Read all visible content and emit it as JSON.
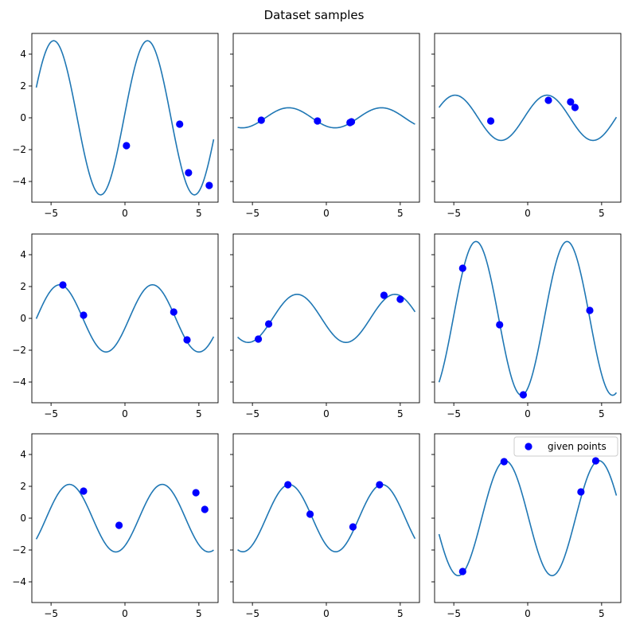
{
  "figure": {
    "title": "Dataset samples"
  },
  "colors": {
    "curve": "#1f77b4",
    "points": "#0000ff",
    "axis": "#000000",
    "legend_border": "#cccccc"
  },
  "chart_data": {
    "type": "scatter",
    "layout_grid": [
      3,
      3
    ],
    "sharey": true,
    "xlim": [
      -6.3,
      6.3
    ],
    "ylim": [
      -5.3,
      5.3
    ],
    "xticks": [
      -5,
      0,
      5
    ],
    "yticks": [
      -4,
      -2,
      0,
      2,
      4
    ],
    "legend": {
      "label": "given points",
      "location": "upper right",
      "panel": 8
    },
    "panels": [
      {
        "amplitude": 4.84,
        "omega": 0.99,
        "phase": 0.06,
        "curve_x_range": [
          -6,
          6
        ],
        "points": [
          [
            0.1,
            -1.75
          ],
          [
            3.7,
            -0.4
          ],
          [
            4.3,
            -3.45
          ],
          [
            5.7,
            -4.25
          ]
        ]
      },
      {
        "amplitude": 0.63,
        "omega": 1.0,
        "phase": 4.12,
        "curve_x_range": [
          -6,
          6
        ],
        "points": [
          [
            -4.4,
            -0.15
          ],
          [
            -0.6,
            -0.2
          ],
          [
            1.6,
            -0.3
          ],
          [
            1.7,
            -0.25
          ]
        ]
      },
      {
        "amplitude": 1.42,
        "omega": 1.01,
        "phase": 0.25,
        "curve_x_range": [
          -6,
          6
        ],
        "points": [
          [
            -2.5,
            -0.2
          ],
          [
            1.4,
            1.1
          ],
          [
            2.9,
            1.0
          ],
          [
            3.2,
            0.65
          ]
        ]
      },
      {
        "amplitude": 2.11,
        "omega": 1.0,
        "phase": 5.99,
        "curve_x_range": [
          -6,
          6
        ],
        "points": [
          [
            -4.2,
            2.1
          ],
          [
            -2.8,
            0.2
          ],
          [
            3.3,
            0.4
          ],
          [
            4.2,
            -1.35
          ]
        ]
      },
      {
        "amplitude": 1.51,
        "omega": 0.95,
        "phase": 3.45,
        "curve_x_range": [
          -6,
          6
        ],
        "points": [
          [
            -4.6,
            -1.3
          ],
          [
            -3.9,
            -0.35
          ],
          [
            3.9,
            1.45
          ],
          [
            5.0,
            1.2
          ]
        ]
      },
      {
        "amplitude": 4.83,
        "omega": 1.02,
        "phase": 5.14,
        "curve_x_range": [
          -6,
          6
        ],
        "points": [
          [
            -4.4,
            3.15
          ],
          [
            -1.9,
            -0.4
          ],
          [
            -0.3,
            -4.8
          ],
          [
            4.2,
            0.5
          ]
        ]
      },
      {
        "amplitude": 2.12,
        "omega": 1.0,
        "phase": 5.33,
        "curve_x_range": [
          -6,
          6
        ],
        "points": [
          [
            -2.8,
            1.7
          ],
          [
            -0.4,
            -0.45
          ],
          [
            4.8,
            1.6
          ],
          [
            5.4,
            0.55
          ]
        ]
      },
      {
        "amplitude": 2.11,
        "omega": 1.0,
        "phase": 4.08,
        "curve_x_range": [
          -6,
          6
        ],
        "points": [
          [
            -2.6,
            2.1
          ],
          [
            -1.1,
            0.25
          ],
          [
            1.8,
            -0.55
          ],
          [
            3.6,
            2.1
          ]
        ]
      },
      {
        "amplitude": 3.61,
        "omega": 0.99,
        "phase": 3.08,
        "curve_x_range": [
          -6,
          6
        ],
        "points": [
          [
            -4.4,
            -3.35
          ],
          [
            -1.6,
            3.55
          ],
          [
            3.6,
            1.65
          ],
          [
            4.6,
            3.6
          ]
        ]
      }
    ]
  }
}
